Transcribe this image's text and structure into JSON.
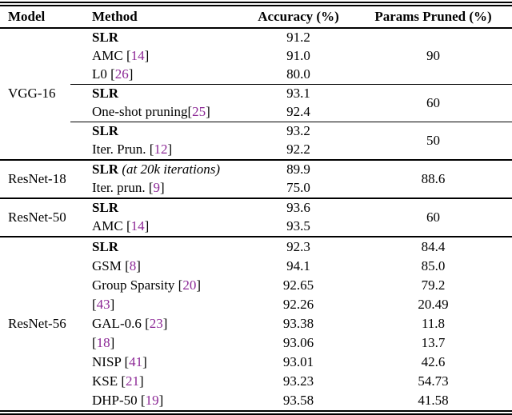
{
  "colors": {
    "citation_link": "#8c2896",
    "text": "#000000",
    "rule": "#000000",
    "background": "#ffffff"
  },
  "header": {
    "model": "Model",
    "method": "Method",
    "accuracy": "Accuracy (%)",
    "params": "Params Pruned (%)"
  },
  "rows": [
    {
      "model": "VGG-16",
      "m_bold": "SLR",
      "accuracy": "91.2",
      "params": "90"
    },
    {
      "m_pre": "AMC [",
      "m_cite": "14",
      "m_post": "]",
      "accuracy": "91.0"
    },
    {
      "m_pre": "L0 [",
      "m_cite": "26",
      "m_post": "]",
      "accuracy": "80.0"
    },
    {
      "m_bold": "SLR",
      "accuracy": "93.1",
      "params": "60"
    },
    {
      "m_pre": "One-shot pruning[",
      "m_cite": "25",
      "m_post": "]",
      "accuracy": "92.4"
    },
    {
      "m_bold": "SLR",
      "accuracy": "93.2",
      "params": "50"
    },
    {
      "m_pre": "Iter. Prun. [",
      "m_cite": "12",
      "m_post": "]",
      "accuracy": "92.2"
    },
    {
      "model": "ResNet-18",
      "m_bold": "SLR",
      "m_italic": " (at 20k iterations)",
      "accuracy": "89.9",
      "params": "88.6"
    },
    {
      "m_pre": "Iter. prun. [",
      "m_cite": "9",
      "m_post": "]",
      "accuracy": "75.0"
    },
    {
      "model": "ResNet-50",
      "m_bold": "SLR",
      "accuracy": "93.6",
      "params": "60"
    },
    {
      "m_pre": "AMC [",
      "m_cite": "14",
      "m_post": "]",
      "accuracy": "93.5"
    },
    {
      "model": "ResNet-56",
      "m_bold": "SLR",
      "accuracy": "92.3",
      "params": "84.4"
    },
    {
      "m_pre": "GSM [",
      "m_cite": "8",
      "m_post": "]",
      "accuracy": "94.1",
      "params": "85.0"
    },
    {
      "m_pre": "Group Sparsity [",
      "m_cite": "20",
      "m_post": "]",
      "accuracy": "92.65",
      "params": "79.2"
    },
    {
      "m_pre": "[",
      "m_cite": "43",
      "m_post": "]",
      "accuracy": "92.26",
      "params": "20.49"
    },
    {
      "m_pre": "GAL-0.6 [",
      "m_cite": "23",
      "m_post": "]",
      "accuracy": "93.38",
      "params": "11.8"
    },
    {
      "m_pre": "[",
      "m_cite": "18",
      "m_post": "]",
      "accuracy": "93.06",
      "params": "13.7"
    },
    {
      "m_pre": "NISP [",
      "m_cite": "41",
      "m_post": "]",
      "accuracy": "93.01",
      "params": "42.6"
    },
    {
      "m_pre": "KSE [",
      "m_cite": "21",
      "m_post": "]",
      "accuracy": "93.23",
      "params": "54.73"
    },
    {
      "m_pre": "DHP-50 [",
      "m_cite": "19",
      "m_post": "]",
      "accuracy": "93.58",
      "params": "41.58"
    }
  ],
  "chart_data": {
    "type": "table",
    "columns": [
      "Model",
      "Method",
      "Accuracy (%)",
      "Params Pruned (%)"
    ],
    "rows": [
      [
        "VGG-16",
        "SLR",
        "91.2",
        "90"
      ],
      [
        "VGG-16",
        "AMC [14]",
        "91.0",
        "90"
      ],
      [
        "VGG-16",
        "L0 [26]",
        "80.0",
        "90"
      ],
      [
        "VGG-16",
        "SLR",
        "93.1",
        "60"
      ],
      [
        "VGG-16",
        "One-shot pruning[25]",
        "92.4",
        "60"
      ],
      [
        "VGG-16",
        "SLR",
        "93.2",
        "50"
      ],
      [
        "VGG-16",
        "Iter. Prun. [12]",
        "92.2",
        "50"
      ],
      [
        "ResNet-18",
        "SLR (at 20k iterations)",
        "89.9",
        "88.6"
      ],
      [
        "ResNet-18",
        "Iter. prun. [9]",
        "75.0",
        "88.6"
      ],
      [
        "ResNet-50",
        "SLR",
        "93.6",
        "60"
      ],
      [
        "ResNet-50",
        "AMC [14]",
        "93.5",
        "60"
      ],
      [
        "ResNet-56",
        "SLR",
        "92.3",
        "84.4"
      ],
      [
        "ResNet-56",
        "GSM [8]",
        "94.1",
        "85.0"
      ],
      [
        "ResNet-56",
        "Group Sparsity [20]",
        "92.65",
        "79.2"
      ],
      [
        "ResNet-56",
        "[43]",
        "92.26",
        "20.49"
      ],
      [
        "ResNet-56",
        "GAL-0.6 [23]",
        "93.38",
        "11.8"
      ],
      [
        "ResNet-56",
        "[18]",
        "93.06",
        "13.7"
      ],
      [
        "ResNet-56",
        "NISP [41]",
        "93.01",
        "42.6"
      ],
      [
        "ResNet-56",
        "KSE [21]",
        "93.23",
        "54.73"
      ],
      [
        "ResNet-56",
        "DHP-50 [19]",
        "93.58",
        "41.58"
      ]
    ]
  }
}
